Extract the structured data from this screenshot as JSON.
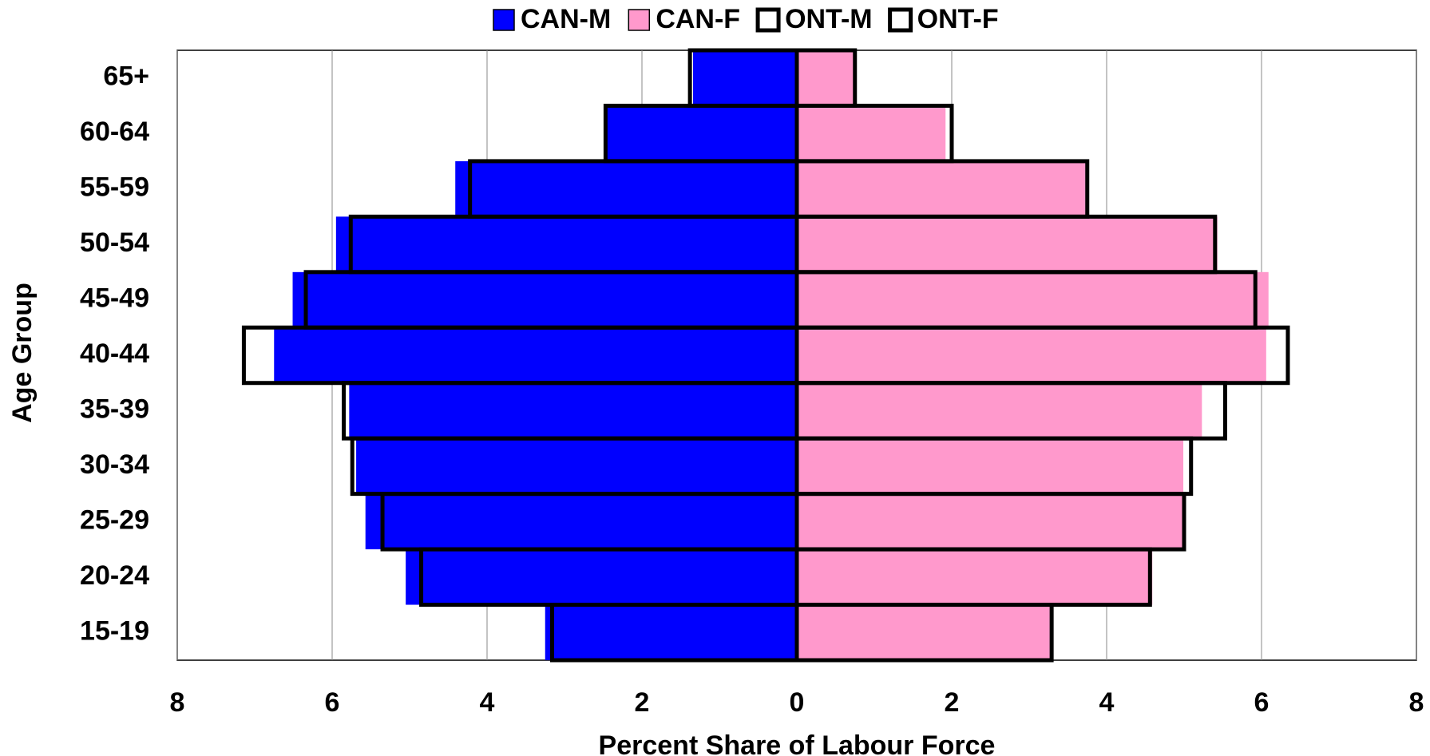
{
  "chart_data": {
    "type": "pyramid",
    "xlabel": "Percent Share of Labour Force",
    "ylabel": "Age Group",
    "categories": [
      "15-19",
      "20-24",
      "25-29",
      "30-34",
      "35-39",
      "40-44",
      "45-49",
      "50-54",
      "55-59",
      "60-64",
      "65+"
    ],
    "series": [
      {
        "name": "CAN-M",
        "color": "#0000ff",
        "style": "fill",
        "values": [
          -3.25,
          -5.05,
          -5.57,
          -5.69,
          -5.78,
          -6.75,
          -6.51,
          -5.95,
          -4.41,
          -2.46,
          -1.34
        ]
      },
      {
        "name": "CAN-F",
        "color": "#ff99cc",
        "style": "fill",
        "values": [
          3.28,
          4.59,
          4.99,
          4.99,
          5.23,
          6.06,
          6.09,
          5.43,
          3.75,
          1.92,
          0.73
        ]
      },
      {
        "name": "ONT-M",
        "color": "#000000",
        "style": "outline",
        "values": [
          -3.16,
          -4.85,
          -5.35,
          -5.74,
          -5.85,
          -7.14,
          -6.34,
          -5.76,
          -4.22,
          -2.47,
          -1.38
        ]
      },
      {
        "name": "ONT-F",
        "color": "#000000",
        "style": "outline",
        "values": [
          3.29,
          4.56,
          5.0,
          5.09,
          5.53,
          6.34,
          5.92,
          5.4,
          3.75,
          2.0,
          0.75
        ]
      }
    ],
    "xlim": [
      -8,
      8
    ],
    "xticks": [
      {
        "value": -8,
        "label": "8"
      },
      {
        "value": -6,
        "label": "6"
      },
      {
        "value": -4,
        "label": "4"
      },
      {
        "value": -2,
        "label": "2"
      },
      0,
      2,
      4,
      6,
      8
    ],
    "grid": true
  }
}
